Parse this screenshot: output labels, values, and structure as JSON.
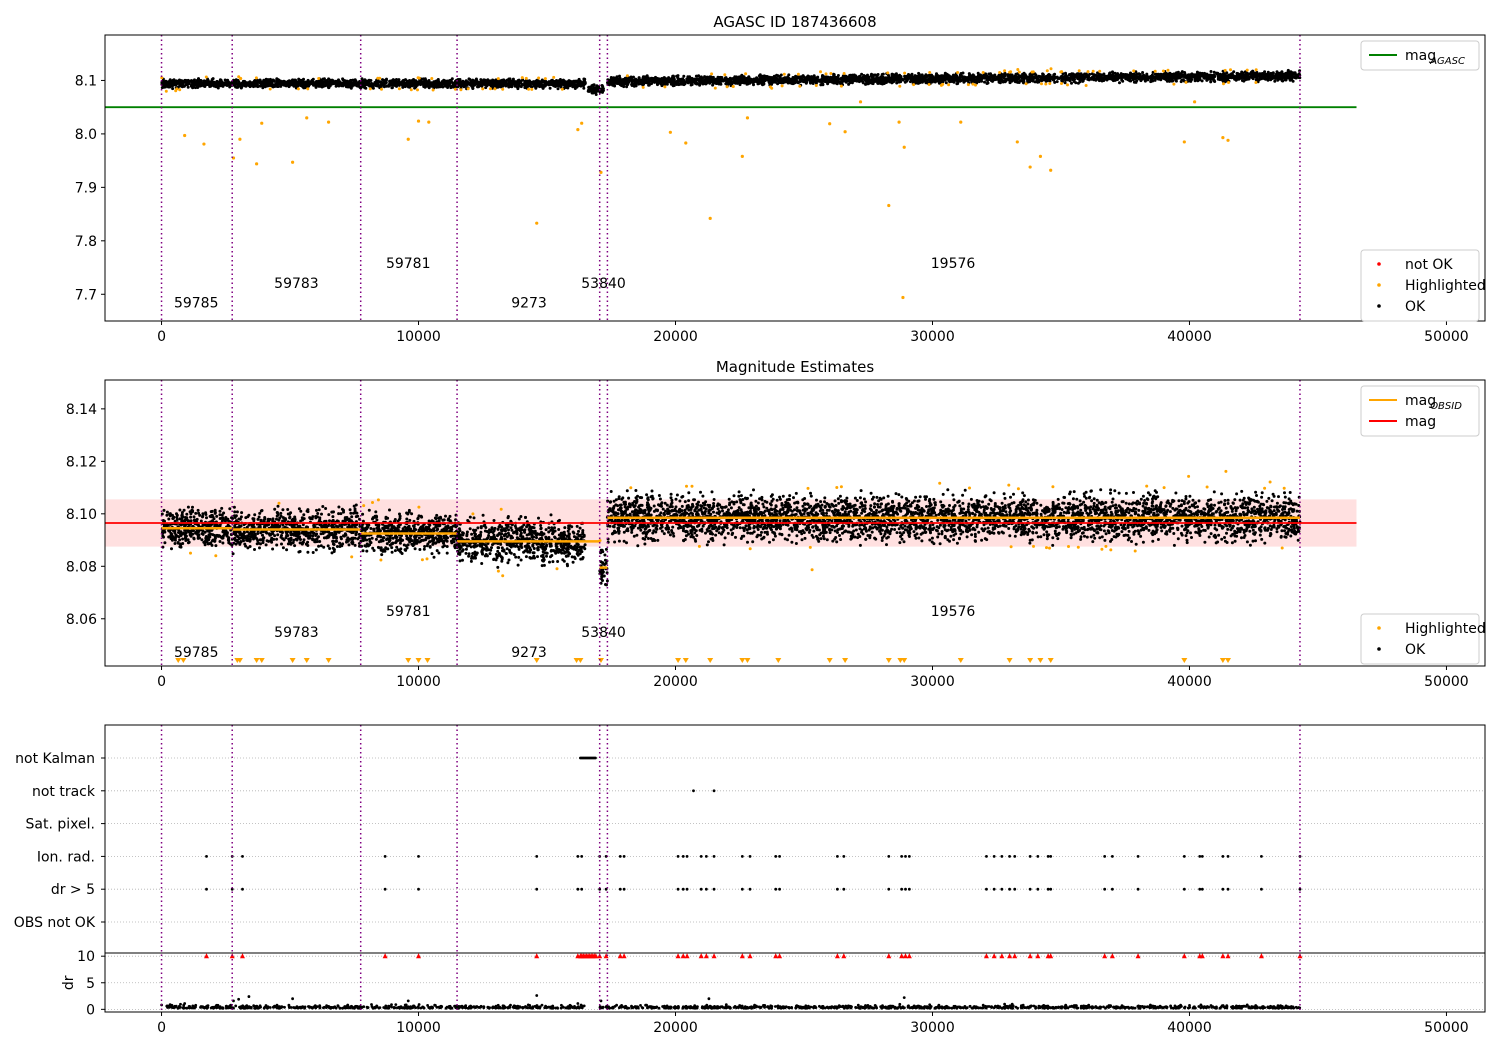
{
  "figure": {
    "colors": {
      "ok": "#000000",
      "highlighted": "#ffa500",
      "not_ok": "#ff0000",
      "mag_agasc": "#008000",
      "mag": "#ff0000",
      "mag_obsid": "#ffa500",
      "obsid_boundary": "#800080",
      "band": "#ffcccc"
    }
  },
  "chart_data": [
    {
      "type": "scatter",
      "title": "AGASC ID 187436608",
      "xlim": [
        -2200,
        51500
      ],
      "ylim": [
        7.65,
        8.185
      ],
      "xticks": [
        0,
        10000,
        20000,
        30000,
        40000,
        50000
      ],
      "yticks": [
        7.7,
        7.8,
        7.9,
        8.0,
        8.1
      ],
      "ytick_labels": [
        "7.7",
        "7.8",
        "7.9",
        "8.0",
        "8.1"
      ],
      "obsid_boundaries": [
        0,
        2750,
        7750,
        11500,
        17050,
        17350,
        44300
      ],
      "obsid_labels": [
        {
          "text": "59785",
          "x": 1350,
          "y": 7.675
        },
        {
          "text": "59783",
          "x": 5250,
          "y": 7.712
        },
        {
          "text": "59781",
          "x": 9600,
          "y": 7.749
        },
        {
          "text": "9273",
          "x": 14300,
          "y": 7.675
        },
        {
          "text": "53840",
          "x": 17200,
          "y": 7.712
        },
        {
          "text": "19576",
          "x": 30800,
          "y": 7.749
        }
      ],
      "lines": [
        {
          "name": "mag_AGASC",
          "y": 8.05,
          "x_range": [
            -2200,
            46500
          ],
          "color": "#008000"
        }
      ],
      "segments": [
        {
          "x0": 0,
          "x1": 16500,
          "center": 8.094,
          "spread": 0.009,
          "gap": []
        },
        {
          "x0": 16600,
          "x1": 17200,
          "center": 8.083,
          "spread": 0.01,
          "gap": []
        },
        {
          "x0": 17350,
          "x1": 44300,
          "center": 8.098,
          "trend": 4e-07,
          "spread": 0.01,
          "gap": []
        }
      ],
      "highlighted_outliers": [
        [
          900,
          7.997
        ],
        [
          1650,
          7.981
        ],
        [
          2800,
          7.955
        ],
        [
          3050,
          7.99
        ],
        [
          3700,
          7.944
        ],
        [
          3900,
          8.02
        ],
        [
          5100,
          7.947
        ],
        [
          5650,
          8.03
        ],
        [
          6500,
          8.022
        ],
        [
          9600,
          7.99
        ],
        [
          10000,
          8.024
        ],
        [
          10400,
          8.022
        ],
        [
          14600,
          7.833
        ],
        [
          16200,
          8.008
        ],
        [
          16350,
          8.02
        ],
        [
          17100,
          7.928
        ],
        [
          19800,
          8.003
        ],
        [
          20400,
          7.983
        ],
        [
          21350,
          7.842
        ],
        [
          22600,
          7.958
        ],
        [
          22800,
          8.03
        ],
        [
          26000,
          8.019
        ],
        [
          26600,
          8.004
        ],
        [
          28300,
          7.866
        ],
        [
          28900,
          7.975
        ],
        [
          28700,
          8.022
        ],
        [
          28850,
          7.694
        ],
        [
          31100,
          8.022
        ],
        [
          33300,
          7.985
        ],
        [
          33800,
          7.938
        ],
        [
          34200,
          7.958
        ],
        [
          34600,
          7.932
        ],
        [
          39800,
          7.985
        ],
        [
          41300,
          7.993
        ],
        [
          41500,
          7.988
        ],
        [
          40200,
          8.06
        ],
        [
          27200,
          8.06
        ]
      ],
      "legends": [
        {
          "position": "upper right",
          "entries": [
            {
              "label": "mag",
              "sub": "AGASC",
              "kind": "line",
              "color": "#008000"
            }
          ]
        },
        {
          "position": "lower right",
          "entries": [
            {
              "label": "not OK",
              "kind": "marker",
              "color": "#ff0000"
            },
            {
              "label": "Highlighted",
              "kind": "marker",
              "color": "#ffa500"
            },
            {
              "label": "OK",
              "kind": "marker",
              "color": "#000000"
            }
          ]
        }
      ]
    },
    {
      "type": "scatter",
      "title": "Magnitude Estimates",
      "xlim": [
        -2200,
        51500
      ],
      "ylim": [
        8.042,
        8.151
      ],
      "xticks": [
        0,
        10000,
        20000,
        30000,
        40000,
        50000
      ],
      "yticks": [
        8.06,
        8.08,
        8.1,
        8.12,
        8.14
      ],
      "ytick_labels": [
        "8.06",
        "8.08",
        "8.10",
        "8.12",
        "8.14"
      ],
      "obsid_boundaries": [
        0,
        2750,
        7750,
        11500,
        17050,
        17350,
        44300
      ],
      "obsid_labels": [
        {
          "text": "59785",
          "x": 1350,
          "y": 8.0455
        },
        {
          "text": "59783",
          "x": 5250,
          "y": 8.053
        },
        {
          "text": "59781",
          "x": 9600,
          "y": 8.061
        },
        {
          "text": "9273",
          "x": 14300,
          "y": 8.0455
        },
        {
          "text": "53840",
          "x": 17200,
          "y": 8.053
        },
        {
          "text": "19576",
          "x": 30800,
          "y": 8.061
        }
      ],
      "mag": {
        "value": 8.0965,
        "band": [
          8.0875,
          8.1055
        ],
        "x_range": [
          -2200,
          46500
        ]
      },
      "mag_obsid": [
        {
          "x0": 0,
          "x1": 2750,
          "y": 8.0945
        },
        {
          "x0": 2750,
          "x1": 7750,
          "y": 8.094
        },
        {
          "x0": 7750,
          "x1": 11500,
          "y": 8.0925
        },
        {
          "x0": 11500,
          "x1": 17050,
          "y": 8.0895
        },
        {
          "x0": 17050,
          "x1": 17350,
          "y": 8.0795
        },
        {
          "x0": 17350,
          "x1": 44300,
          "y": 8.0985
        }
      ],
      "segments": [
        {
          "x0": 0,
          "x1": 2750,
          "center": 8.0945,
          "spread": 0.0065
        },
        {
          "x0": 2750,
          "x1": 7750,
          "center": 8.094,
          "spread": 0.0065
        },
        {
          "x0": 7750,
          "x1": 11500,
          "center": 8.0925,
          "spread": 0.0065
        },
        {
          "x0": 11500,
          "x1": 16500,
          "center": 8.0895,
          "spread": 0.007
        },
        {
          "x0": 17050,
          "x1": 17350,
          "center": 8.0795,
          "spread": 0.007
        },
        {
          "x0": 17350,
          "x1": 44300,
          "center": 8.0985,
          "spread": 0.0075
        }
      ],
      "floor_triangles_x": [
        650,
        850,
        2950,
        3050,
        3700,
        3900,
        5100,
        5650,
        6500,
        9600,
        10000,
        10350,
        14600,
        16150,
        16300,
        17100,
        20100,
        20400,
        21350,
        22600,
        22800,
        24000,
        26000,
        26600,
        28300,
        28750,
        28900,
        31100,
        33000,
        33800,
        34200,
        34600,
        39800,
        41300,
        41500
      ],
      "legends": [
        {
          "position": "upper right",
          "entries": [
            {
              "label": "mag",
              "sub": "OBSID",
              "kind": "line",
              "color": "#ffa500"
            },
            {
              "label": "mag",
              "kind": "line",
              "color": "#ff0000"
            }
          ]
        },
        {
          "position": "lower right",
          "entries": [
            {
              "label": "Highlighted",
              "kind": "marker",
              "color": "#ffa500"
            },
            {
              "label": "OK",
              "kind": "marker",
              "color": "#000000"
            }
          ]
        }
      ]
    },
    {
      "type": "scatter",
      "title": "",
      "xlim": [
        -2200,
        51500
      ],
      "xticks": [
        0,
        10000,
        20000,
        30000,
        40000,
        50000
      ],
      "obsid_boundaries": [
        0,
        2750,
        7750,
        11500,
        17050,
        17350,
        44300
      ],
      "flag_categories": [
        "not Kalman",
        "not track",
        "Sat. pixel.",
        "Ion. rad.",
        "dr > 5",
        "OBS not OK"
      ],
      "flags": {
        "not Kalman": [
          [
            16300,
            16900
          ]
        ],
        "not track": [
          [
            20700
          ],
          [
            21500
          ]
        ],
        "Sat. pixel.": [],
        "Ion. rad.": [
          1750,
          2750,
          3150,
          8700,
          10000,
          14600,
          16200,
          16350,
          17050,
          17300,
          17850,
          18000,
          20100,
          20300,
          20450,
          21000,
          21200,
          21500,
          22600,
          22900,
          23900,
          24050,
          26300,
          26550,
          28300,
          28800,
          28950,
          29100,
          32100,
          32400,
          32700,
          33000,
          33200,
          33800,
          34100,
          34500,
          34600,
          36700,
          37000,
          38000,
          39800,
          40400,
          40500,
          41300,
          41500,
          42800,
          44300
        ],
        "dr > 5": [
          1750,
          2750,
          3150,
          8700,
          10000,
          14600,
          16200,
          16350,
          17050,
          17300,
          17850,
          18000,
          20100,
          20300,
          20450,
          21000,
          21200,
          21500,
          22600,
          22900,
          23900,
          24050,
          26300,
          26550,
          28300,
          28800,
          28950,
          29100,
          32100,
          32400,
          32700,
          33000,
          33200,
          33800,
          34100,
          34500,
          34600,
          36700,
          37000,
          38000,
          39800,
          40400,
          40500,
          41300,
          41500,
          42800,
          44300
        ],
        "OBS not OK": []
      },
      "dr_panel": {
        "ylabel": "dr",
        "ylim": [
          -0.5,
          10.6
        ],
        "yticks": [
          0,
          5,
          10
        ],
        "ytick_labels": [
          "0",
          "5",
          "10"
        ],
        "clipped_value": 10,
        "baseline": 0.2,
        "isolated_points": [
          [
            900,
            1.1
          ],
          [
            2800,
            1.6
          ],
          [
            3000,
            1.9
          ],
          [
            3400,
            2.4
          ],
          [
            5100,
            2.0
          ],
          [
            9600,
            1.6
          ],
          [
            14600,
            2.6
          ],
          [
            21300,
            2.0
          ],
          [
            28900,
            2.2
          ],
          [
            16200,
            1.1
          ],
          [
            17100,
            1.6
          ]
        ]
      }
    }
  ]
}
